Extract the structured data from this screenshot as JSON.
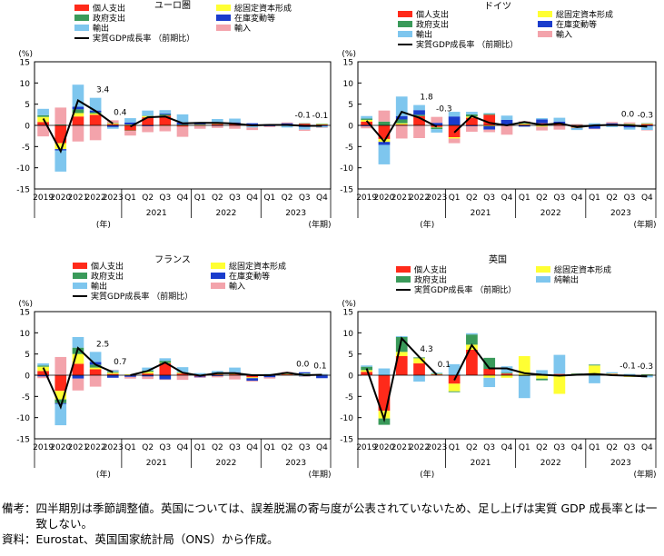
{
  "chart_data": [
    {
      "type": "bar",
      "title": "ユーロ圏",
      "ylabel": "(%)",
      "ylim": [
        -15,
        15
      ],
      "yticks": [
        15,
        10,
        5,
        0,
        -5,
        -10,
        -15
      ],
      "categories": [
        "2019",
        "2020",
        "2021",
        "2022",
        "2023",
        "Q1",
        "Q2",
        "Q3",
        "Q4",
        "Q1",
        "Q2",
        "Q3",
        "Q4",
        "Q1",
        "Q2",
        "Q3",
        "Q4"
      ],
      "year_labels": [
        "2021",
        "2022",
        "2023"
      ],
      "x_unit_annual": "(年)",
      "x_unit_quarterly": "(年期)",
      "series": [
        {
          "name": "個人支出",
          "color": "#ff2a1a",
          "values": [
            0.8,
            -4.2,
            2.1,
            2.5,
            0.3,
            -1.2,
            1.9,
            2.3,
            -0.3,
            0.0,
            0.3,
            0.5,
            -0.2,
            0.0,
            0.0,
            0.4,
            0.2
          ]
        },
        {
          "name": "総固定資本形成",
          "color": "#ffff33",
          "values": [
            1.2,
            -1.4,
            0.8,
            0.3,
            0.2,
            0.2,
            0.3,
            -0.1,
            0.1,
            0.2,
            0.1,
            0.0,
            0.1,
            0.0,
            0.1,
            0.0,
            0.1
          ]
        },
        {
          "name": "政府支出",
          "color": "#3a9a5a",
          "values": [
            0.4,
            0.2,
            0.9,
            0.3,
            0.1,
            -0.1,
            0.1,
            0.3,
            0.1,
            0.0,
            0.1,
            0.0,
            0.1,
            0.0,
            0.0,
            0.1,
            0.1
          ]
        },
        {
          "name": "在庫変動等",
          "color": "#1a3ccc",
          "values": [
            -0.1,
            -0.3,
            0.6,
            0.4,
            -0.4,
            0.5,
            -0.2,
            0.2,
            0.5,
            0.3,
            -0.1,
            0.2,
            0.3,
            -0.2,
            0.4,
            -0.4,
            -0.2
          ]
        },
        {
          "name": "輸出",
          "color": "#7ec6ee",
          "values": [
            1.5,
            -5.0,
            5.2,
            3.0,
            -0.4,
            1.0,
            1.2,
            0.8,
            1.9,
            0.3,
            1.0,
            0.9,
            -0.3,
            0.3,
            -0.5,
            -0.6,
            -0.3
          ]
        },
        {
          "name": "輸入",
          "color": "#f3a3ab",
          "values": [
            -2.5,
            4.0,
            -3.8,
            -3.5,
            0.6,
            -1.1,
            -1.4,
            -1.3,
            -2.4,
            -0.8,
            -0.5,
            -0.8,
            -0.6,
            -0.2,
            0.2,
            -0.3,
            -0.1
          ]
        }
      ],
      "line": {
        "name": "実質GDP成長率 （前期比）",
        "values": [
          1.6,
          -6.1,
          5.9,
          3.4,
          0.4,
          -0.3,
          1.9,
          2.1,
          0.5,
          0.6,
          0.6,
          0.4,
          0.0,
          0.1,
          0.1,
          -0.1,
          -0.1
        ]
      },
      "annotations": [
        {
          "index": 3,
          "text": "3.4"
        },
        {
          "index": 4,
          "text": "0.4"
        },
        {
          "index": 15,
          "text": "-0.1"
        },
        {
          "index": 16,
          "text": "-0.1"
        }
      ]
    },
    {
      "type": "bar",
      "title": "ドイツ",
      "ylabel": "(%)",
      "ylim": [
        -15,
        15
      ],
      "yticks": [
        15,
        10,
        5,
        0,
        -5,
        -10,
        -15
      ],
      "categories": [
        "2019",
        "2020",
        "2021",
        "2022",
        "2023",
        "Q1",
        "Q2",
        "Q3",
        "Q4",
        "Q1",
        "Q2",
        "Q3",
        "Q4",
        "Q1",
        "Q2",
        "Q3",
        "Q4"
      ],
      "year_labels": [
        "2021",
        "2022",
        "2023"
      ],
      "x_unit_annual": "(年)",
      "x_unit_quarterly": "(年期)",
      "series": [
        {
          "name": "個人支出",
          "color": "#ff2a1a",
          "values": [
            0.9,
            -3.2,
            0.2,
            2.2,
            -0.4,
            -2.8,
            1.8,
            2.5,
            0.0,
            0.2,
            0.5,
            0.3,
            -0.5,
            0.0,
            0.1,
            0.2,
            0.3
          ]
        },
        {
          "name": "総固定資本形成",
          "color": "#ffff33",
          "values": [
            0.4,
            -0.7,
            0.3,
            0.0,
            -0.1,
            -0.3,
            0.3,
            -0.2,
            0.0,
            0.2,
            -0.3,
            0.0,
            -0.1,
            0.1,
            0.0,
            0.1,
            0.1
          ]
        },
        {
          "name": "政府支出",
          "color": "#3a9a5a",
          "values": [
            0.3,
            0.9,
            0.9,
            0.3,
            -0.4,
            0.1,
            0.5,
            0.2,
            0.1,
            0.1,
            0.0,
            0.0,
            0.1,
            -0.2,
            0.1,
            0.1,
            0.1
          ]
        },
        {
          "name": "在庫変動等",
          "color": "#1a3ccc",
          "values": [
            -0.2,
            -0.7,
            0.8,
            1.1,
            0.6,
            2.0,
            -0.2,
            -0.8,
            1.2,
            -0.3,
            0.9,
            0.6,
            -0.1,
            -0.6,
            0.3,
            -0.5,
            -0.2
          ]
        },
        {
          "name": "輸出",
          "color": "#7ec6ee",
          "values": [
            0.6,
            -4.6,
            4.6,
            1.2,
            -0.8,
            1.1,
            0.6,
            0.2,
            1.0,
            0.4,
            0.3,
            0.9,
            -0.4,
            0.4,
            -0.4,
            -0.5,
            -0.9
          ]
        },
        {
          "name": "輸入",
          "color": "#f3a3ab",
          "values": [
            -0.5,
            2.6,
            -3.1,
            -3.0,
            1.4,
            -1.1,
            -1.3,
            -0.6,
            -2.2,
            0.1,
            -0.9,
            -1.0,
            0.2,
            -0.1,
            0.3,
            0.3,
            -0.1
          ]
        }
      ],
      "line": {
        "name": "実質GDP成長率 （前期比）",
        "values": [
          1.1,
          -3.8,
          3.2,
          1.8,
          -0.3,
          -1.7,
          2.2,
          0.6,
          0.0,
          0.8,
          0.1,
          0.5,
          -0.4,
          0.0,
          0.1,
          0.0,
          -0.3
        ]
      },
      "annotations": [
        {
          "index": 3,
          "text": "1.8"
        },
        {
          "index": 4,
          "text": "-0.3"
        },
        {
          "index": 15,
          "text": "0.0"
        },
        {
          "index": 16,
          "text": "-0.3"
        }
      ]
    },
    {
      "type": "bar",
      "title": "フランス",
      "ylabel": "(%)",
      "ylim": [
        -15,
        15
      ],
      "yticks": [
        15,
        10,
        5,
        0,
        -5,
        -10,
        -15
      ],
      "categories": [
        "2019",
        "2020",
        "2021",
        "2022",
        "2023",
        "Q1",
        "Q2",
        "Q3",
        "Q4",
        "Q1",
        "Q2",
        "Q3",
        "Q4",
        "Q1",
        "Q2",
        "Q3",
        "Q4"
      ],
      "year_labels": [
        "2021",
        "2022",
        "2023"
      ],
      "x_unit_annual": "(年)",
      "x_unit_quarterly": "(年期)",
      "series": [
        {
          "name": "個人支出",
          "color": "#ff2a1a",
          "values": [
            1.0,
            -3.7,
            2.7,
            1.4,
            0.3,
            -0.1,
            0.4,
            2.8,
            0.4,
            -0.3,
            0.2,
            0.2,
            -0.5,
            0.0,
            0.2,
            0.2,
            0.1
          ]
        },
        {
          "name": "総固定資本形成",
          "color": "#ffff33",
          "values": [
            1.0,
            -2.0,
            2.3,
            0.4,
            0.3,
            0.2,
            0.4,
            0.1,
            0.2,
            0.1,
            0.1,
            0.3,
            -0.2,
            0.0,
            0.1,
            0.1,
            0.0
          ]
        },
        {
          "name": "政府支出",
          "color": "#3a9a5a",
          "values": [
            0.3,
            -0.9,
            1.5,
            0.7,
            0.2,
            0.0,
            0.3,
            0.5,
            0.1,
            0.0,
            0.1,
            0.1,
            0.0,
            0.0,
            0.1,
            0.1,
            0.0
          ]
        },
        {
          "name": "在庫変動等",
          "color": "#1a3ccc",
          "values": [
            -0.3,
            -0.2,
            -0.8,
            0.6,
            -0.6,
            -0.3,
            -0.3,
            -1.0,
            0.0,
            -0.2,
            -0.2,
            0.1,
            -0.6,
            -0.5,
            0.1,
            0.3,
            -0.7
          ]
        },
        {
          "name": "輸出",
          "color": "#7ec6ee",
          "values": [
            0.5,
            -5.0,
            2.5,
            2.4,
            0.4,
            0.0,
            0.7,
            0.6,
            1.2,
            0.4,
            0.6,
            1.1,
            0.0,
            0.3,
            0.2,
            -0.3,
            0.2
          ]
        },
        {
          "name": "輸入",
          "color": "#f3a3ab",
          "values": [
            -0.4,
            4.3,
            -2.8,
            -2.7,
            0.1,
            -0.4,
            -0.6,
            -0.1,
            -1.1,
            -0.1,
            -0.3,
            -1.0,
            -0.2,
            -0.3,
            0.1,
            -0.1,
            0.0
          ]
        }
      ],
      "line": {
        "name": "実質GDP成長率 （前期比）",
        "values": [
          1.8,
          -7.5,
          6.4,
          2.5,
          0.7,
          0.0,
          1.0,
          3.0,
          0.6,
          -0.1,
          0.5,
          0.5,
          0.0,
          0.0,
          0.6,
          0.0,
          0.1
        ]
      },
      "annotations": [
        {
          "index": 3,
          "text": "2.5"
        },
        {
          "index": 4,
          "text": "0.7"
        },
        {
          "index": 15,
          "text": "0.0"
        },
        {
          "index": 16,
          "text": "0.1"
        }
      ]
    },
    {
      "type": "bar",
      "title": "英国",
      "ylabel": "(%)",
      "ylim": [
        -15,
        15
      ],
      "yticks": [
        15,
        10,
        5,
        0,
        -5,
        -10,
        -15
      ],
      "categories": [
        "2019",
        "2020",
        "2021",
        "2022",
        "2023",
        "Q1",
        "Q2",
        "Q3",
        "Q4",
        "Q1",
        "Q2",
        "Q3",
        "Q4",
        "Q1",
        "Q2",
        "Q3",
        "Q4"
      ],
      "year_labels": [
        "2021",
        "2022",
        "2023"
      ],
      "x_unit_annual": "(年)",
      "x_unit_quarterly": "(年期)",
      "series": [
        {
          "name": "個人支出",
          "color": "#ff2a1a",
          "values": [
            0.8,
            -8.4,
            4.5,
            2.8,
            0.2,
            -2.0,
            6.0,
            1.5,
            0.4,
            -0.1,
            0.0,
            0.3,
            0.2,
            0.0,
            0.3,
            -0.3,
            0.0
          ]
        },
        {
          "name": "総固定資本形成",
          "color": "#ffff33",
          "values": [
            0.4,
            -1.8,
            1.0,
            1.2,
            0.1,
            -1.8,
            1.2,
            -0.6,
            -0.6,
            4.5,
            -0.8,
            -4.4,
            0.1,
            2.3,
            0.1,
            -0.1,
            0.1
          ]
        },
        {
          "name": "政府支出",
          "color": "#3a9a5a",
          "values": [
            0.8,
            -1.5,
            3.5,
            0.2,
            0.1,
            -0.2,
            2.4,
            2.6,
            0.2,
            -0.1,
            -0.4,
            0.0,
            0.1,
            0.2,
            -0.1,
            0.0,
            0.1
          ]
        },
        {
          "name": "純輸出",
          "color": "#7ec6ee",
          "values": [
            0.3,
            1.6,
            0.2,
            -1.5,
            0.2,
            2.6,
            0.3,
            -2.2,
            1.5,
            -5.2,
            1.2,
            4.5,
            0.0,
            -1.9,
            0.3,
            0.3,
            -0.5
          ]
        }
      ],
      "line": {
        "name": "実質GDP成長率 （前期比）",
        "values": [
          1.6,
          -10.4,
          8.7,
          4.3,
          0.1,
          -1.2,
          7.1,
          1.6,
          1.6,
          0.5,
          0.1,
          -0.1,
          0.1,
          0.3,
          0.0,
          -0.1,
          -0.3
        ]
      },
      "annotations": [
        {
          "index": 3,
          "text": "4.3"
        },
        {
          "index": 4,
          "text": "0.1"
        },
        {
          "index": 15,
          "text": "-0.1"
        },
        {
          "index": 16,
          "text": "-0.3"
        }
      ]
    }
  ],
  "notes": [
    {
      "label": "備考：",
      "text": "四半期別は季節調整値。英国については、誤差脱漏の寄与度が公表されていないため、足し上げは実質 GDP 成長率とは一致しない。"
    },
    {
      "label": "資料：",
      "text": "Eurostat、英国国家統計局（ONS）から作成。"
    }
  ]
}
